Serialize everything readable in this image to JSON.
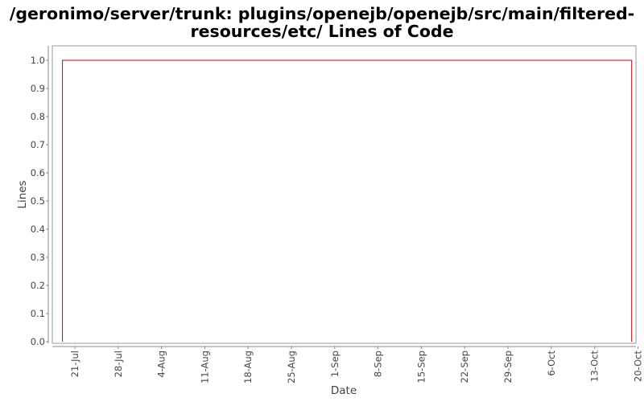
{
  "chart_data": {
    "type": "line",
    "title": "/geronimo/server/trunk: plugins/openejb/openejb/src/main/filtered-resources/etc/ Lines of Code",
    "title_lines": [
      "/geronimo/server/trunk: plugins/openejb/openejb/src/main/filtered-",
      "resources/etc/ Lines of Code"
    ],
    "xlabel": "Date",
    "ylabel": "Lines",
    "ylim": [
      0,
      1.0
    ],
    "yticks": [
      "0.0",
      "0.1",
      "0.2",
      "0.3",
      "0.4",
      "0.5",
      "0.6",
      "0.7",
      "0.8",
      "0.9",
      "1.0"
    ],
    "xticks": [
      "21-Jul",
      "28-Jul",
      "4-Aug",
      "11-Aug",
      "18-Aug",
      "25-Aug",
      "1-Sep",
      "8-Sep",
      "15-Sep",
      "22-Sep",
      "29-Sep",
      "6-Oct",
      "13-Oct",
      "20-Oct"
    ],
    "x_first_tick": "21-Jul",
    "x_tick_step_days": 7,
    "grid": false,
    "series": [
      {
        "color": "#cc0000",
        "points": [
          {
            "x": "19-Jul",
            "y": 0.0
          },
          {
            "x": "19-Jul",
            "y": 1.0
          },
          {
            "x": "19-Oct",
            "y": 1.0
          },
          {
            "x": "19-Oct",
            "y": 0.0
          }
        ]
      }
    ]
  }
}
